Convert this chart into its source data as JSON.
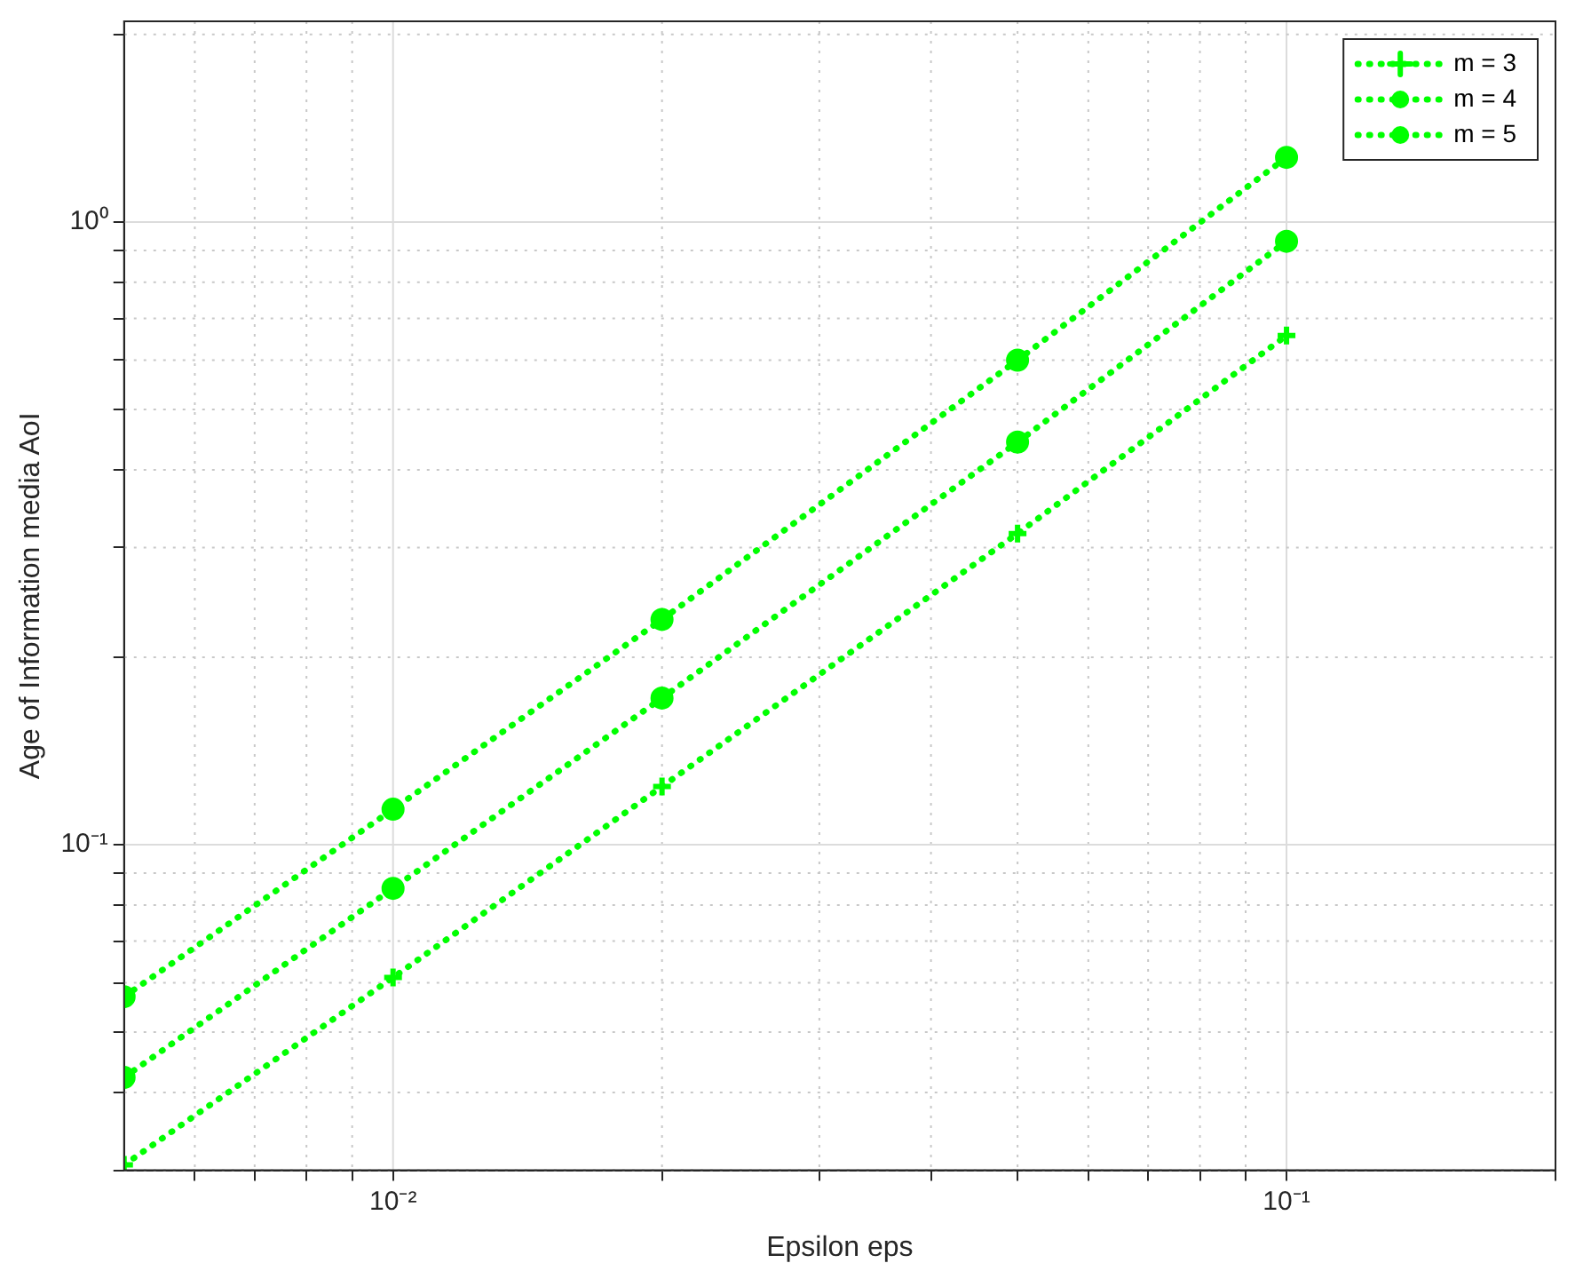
{
  "chart_data": {
    "type": "line",
    "xlabel": "Epsilon eps",
    "ylabel": "Age of Information media AoI",
    "log": "xy",
    "grid": true,
    "legend": "top right",
    "line_style": "dotted",
    "xlim": [
      0.005,
      0.2
    ],
    "xticks": [
      {
        "value": 0.006,
        "label": null
      },
      {
        "value": 0.007,
        "label": null
      },
      {
        "value": 0.008,
        "label": null
      },
      {
        "value": 0.009,
        "label": null
      },
      {
        "value": 0.01,
        "label": "10⁻²"
      },
      {
        "value": 0.02,
        "label": null
      },
      {
        "value": 0.03,
        "label": null
      },
      {
        "value": 0.04,
        "label": null
      },
      {
        "value": 0.05,
        "label": null
      },
      {
        "value": 0.06,
        "label": null
      },
      {
        "value": 0.07,
        "label": null
      },
      {
        "value": 0.08,
        "label": null
      },
      {
        "value": 0.09,
        "label": null
      },
      {
        "value": 0.1,
        "label": "10⁻¹"
      },
      {
        "value": 0.2,
        "label": null
      }
    ],
    "ylim": [
      0.03,
      2.1
    ],
    "yticks": [
      {
        "value": 0.03,
        "label": null
      },
      {
        "value": 0.04,
        "label": null
      },
      {
        "value": 0.05,
        "label": null
      },
      {
        "value": 0.06,
        "label": null
      },
      {
        "value": 0.07,
        "label": null
      },
      {
        "value": 0.08,
        "label": null
      },
      {
        "value": 0.09,
        "label": null
      },
      {
        "value": 0.1,
        "label": "10⁻¹"
      },
      {
        "value": 0.2,
        "label": null
      },
      {
        "value": 0.3,
        "label": null
      },
      {
        "value": 0.4,
        "label": null
      },
      {
        "value": 0.5,
        "label": null
      },
      {
        "value": 0.6,
        "label": null
      },
      {
        "value": 0.7,
        "label": null
      },
      {
        "value": 0.8,
        "label": null
      },
      {
        "value": 0.9,
        "label": null
      },
      {
        "value": 1,
        "label": "10⁰"
      },
      {
        "value": 2,
        "label": null
      }
    ],
    "x": [
      0.005,
      0.01,
      0.02,
      0.05,
      0.1
    ],
    "series": [
      {
        "name": "m = 3",
        "color": "#00ff00",
        "marker": "cross",
        "values": [
          0.0306,
          0.0612,
          0.124,
          0.316,
          0.657
        ]
      },
      {
        "name": "m = 4",
        "color": "#00ff00",
        "marker": "circle",
        "values": [
          0.0423,
          0.0851,
          0.172,
          0.443,
          0.931
        ]
      },
      {
        "name": "m = 5",
        "color": "#00ff00",
        "marker": "circle",
        "values": [
          0.057,
          0.114,
          0.23,
          0.6,
          1.27
        ]
      }
    ]
  }
}
